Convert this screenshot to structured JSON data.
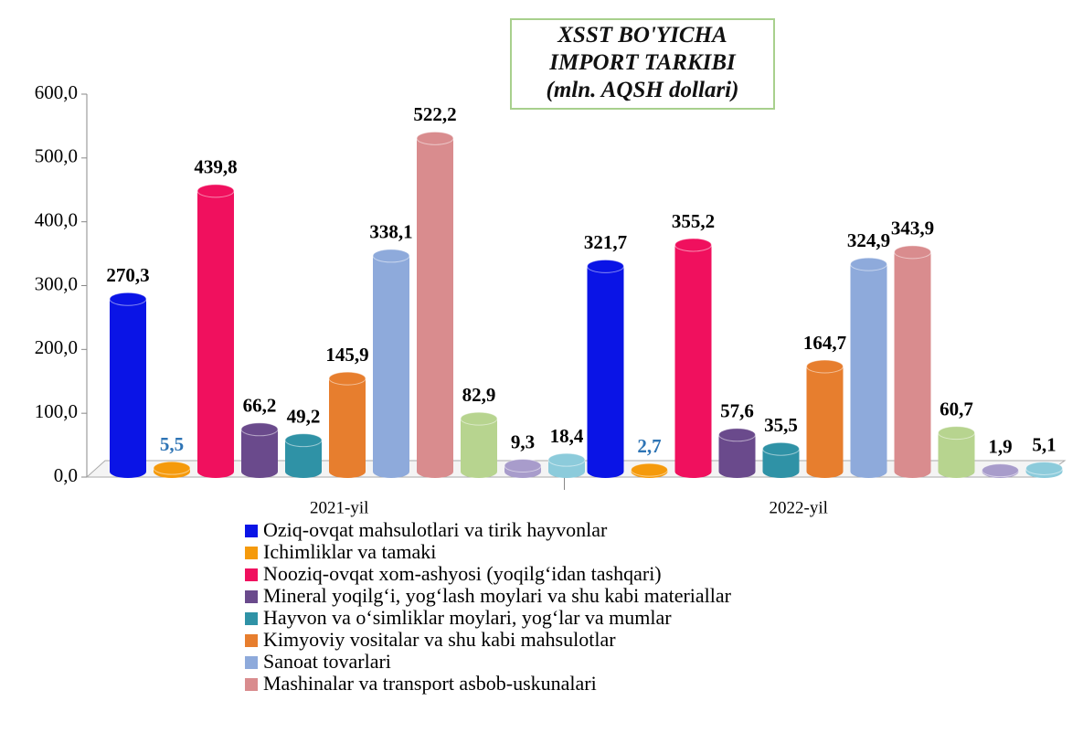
{
  "chart_data": {
    "type": "bar3d",
    "title": "XSST BO'YICHA IMPORT TARKIBI",
    "subtitle": "(mln. AQSH dollari)",
    "categories": [
      "2021-yil",
      "2022-yil"
    ],
    "ylim": [
      0,
      600
    ],
    "yticks": [
      {
        "value": 0,
        "label": "0,0"
      },
      {
        "value": 100,
        "label": "100,0"
      },
      {
        "value": 200,
        "label": "200,0"
      },
      {
        "value": 300,
        "label": "300,0"
      },
      {
        "value": 400,
        "label": "400,0"
      },
      {
        "value": 500,
        "label": "500,0"
      },
      {
        "value": 600,
        "label": "600,0"
      }
    ],
    "series": [
      {
        "name": "Oziq-ovqat mahsulotlari va tirik hayvonlar",
        "color": "#0a14e6",
        "values": [
          270.3,
          321.7
        ],
        "value_labels": [
          "270,3",
          "321,7"
        ]
      },
      {
        "name": "Ichimliklar va tamaki",
        "color": "#f59a0c",
        "values": [
          5.5,
          2.7
        ],
        "value_labels": [
          "5,5",
          "2,7"
        ],
        "label_color": "#2e74b5"
      },
      {
        "name": "Nooziq-ovqat xom-ashyosi (yoqilg‘idan tashqari)",
        "color": "#f0105e",
        "values": [
          439.8,
          355.2
        ],
        "value_labels": [
          "439,8",
          "355,2"
        ]
      },
      {
        "name": "Mineral yoqilg‘i, yog‘lash moylari va shu kabi materiallar",
        "color": "#6a4a8c",
        "values": [
          66.2,
          57.6
        ],
        "value_labels": [
          "66,2",
          "57,6"
        ]
      },
      {
        "name": "Hayvon va o‘simliklar moylari, yog‘lar va mumlar",
        "color": "#2f92a6",
        "values": [
          49.2,
          35.5
        ],
        "value_labels": [
          "49,2",
          "35,5"
        ]
      },
      {
        "name": "Kimyoviy vositalar va shu kabi mahsulotlar",
        "color": "#e77e2e",
        "values": [
          145.9,
          164.7
        ],
        "value_labels": [
          "145,9",
          "164,7"
        ]
      },
      {
        "name": "Sanoat tovarlari",
        "color": "#8eaadb",
        "values": [
          338.1,
          324.9
        ],
        "value_labels": [
          "338,1",
          "324,9"
        ]
      },
      {
        "name": "Mashinalar va transport asbob-uskunalari",
        "color": "#d98c8e",
        "values": [
          522.2,
          343.9
        ],
        "value_labels": [
          "522,2",
          "343,9"
        ]
      },
      {
        "color": "#b7d48f",
        "values": [
          82.9,
          60.7
        ],
        "value_labels": [
          "82,9",
          "60,7"
        ]
      },
      {
        "color": "#a89ccb",
        "values": [
          9.3,
          1.9
        ],
        "value_labels": [
          "9,3",
          "1,9"
        ]
      },
      {
        "color": "#8ccbdb",
        "values": [
          18.4,
          5.1
        ],
        "value_labels": [
          "18,4",
          "5,1"
        ]
      }
    ]
  }
}
